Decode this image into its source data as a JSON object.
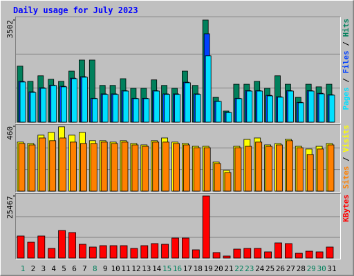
{
  "title": "Daily usage for July 2023",
  "legend_separator": " / ",
  "chart_data": [
    {
      "type": "bar",
      "ylim": [
        0,
        3502
      ],
      "yticks": [
        3502
      ],
      "grid_divisions": 3,
      "series": [
        {
          "name": "Hits",
          "color": "#00805c",
          "values": [
            1920,
            1400,
            1590,
            1470,
            1400,
            1750,
            2130,
            2130,
            1260,
            1260,
            1490,
            1160,
            1160,
            1450,
            1260,
            1160,
            1750,
            1260,
            3502,
            850,
            380,
            1300,
            1300,
            1400,
            1160,
            1590,
            1300,
            850,
            1300,
            1210,
            1300
          ]
        },
        {
          "name": "Files",
          "color": "#0040ff",
          "values": [
            1400,
            1040,
            1180,
            1270,
            1230,
            1510,
            1560,
            820,
            970,
            970,
            1080,
            820,
            820,
            1080,
            970,
            970,
            1370,
            970,
            3030,
            720,
            340,
            820,
            1080,
            1080,
            920,
            870,
            1080,
            680,
            1080,
            990,
            940
          ]
        },
        {
          "name": "Pages",
          "color": "#00e0ff",
          "values": [
            1375,
            1020,
            1160,
            1255,
            1210,
            1490,
            1540,
            805,
            950,
            950,
            1065,
            805,
            805,
            1065,
            950,
            950,
            1350,
            950,
            2275,
            710,
            330,
            805,
            1065,
            1065,
            900,
            855,
            1065,
            665,
            1065,
            970,
            925
          ]
        }
      ]
    },
    {
      "type": "bar",
      "ylim": [
        0,
        460
      ],
      "yticks": [
        460
      ],
      "grid_divisions": 3,
      "series": [
        {
          "name": "Visits",
          "color": "#ffff00",
          "values": [
            348,
            338,
            397,
            417,
            456,
            397,
            417,
            358,
            358,
            348,
            358,
            338,
            328,
            358,
            377,
            348,
            338,
            318,
            318,
            206,
            147,
            318,
            367,
            377,
            328,
            338,
            367,
            318,
            299,
            318,
            338
          ]
        },
        {
          "name": "Sites",
          "color": "#ff8000",
          "values": [
            338,
            328,
            377,
            358,
            377,
            348,
            338,
            338,
            348,
            338,
            348,
            328,
            318,
            348,
            348,
            338,
            328,
            308,
            308,
            196,
            132,
            308,
            318,
            348,
            318,
            328,
            358,
            308,
            260,
            299,
            328
          ]
        }
      ]
    },
    {
      "type": "bar",
      "ylim": [
        0,
        25467
      ],
      "yticks": [
        25467
      ],
      "grid_divisions": 3,
      "categories": [
        "1",
        "2",
        "3",
        "4",
        "5",
        "6",
        "7",
        "8",
        "9",
        "10",
        "11",
        "12",
        "13",
        "14",
        "15",
        "16",
        "17",
        "18",
        "19",
        "20",
        "21",
        "22",
        "23",
        "24",
        "25",
        "26",
        "27",
        "28",
        "29",
        "30",
        "31"
      ],
      "label_colors": [
        "#00805c",
        "#000000",
        "#000000",
        "#000000",
        "#000000",
        "#000000",
        "#000000",
        "#00805c",
        "#000000",
        "#000000",
        "#000000",
        "#000000",
        "#000000",
        "#000000",
        "#00805c",
        "#00805c",
        "#000000",
        "#000000",
        "#000000",
        "#000000",
        "#000000",
        "#00805c",
        "#00805c",
        "#000000",
        "#000000",
        "#000000",
        "#000000",
        "#000000",
        "#00805c",
        "#00805c",
        "#000000"
      ],
      "series": [
        {
          "name": "KBytes",
          "color": "#ff0000",
          "values": [
            9056,
            6509,
            9056,
            3962,
            11320,
            10471,
            5660,
            4528,
            5094,
            5094,
            5094,
            3962,
            5094,
            5943,
            5660,
            8207,
            8207,
            3396,
            25467,
            2264,
            849,
            3679,
            3962,
            3962,
            2547,
            6226,
            5943,
            1981,
            2830,
            2547,
            4528
          ]
        }
      ]
    }
  ]
}
